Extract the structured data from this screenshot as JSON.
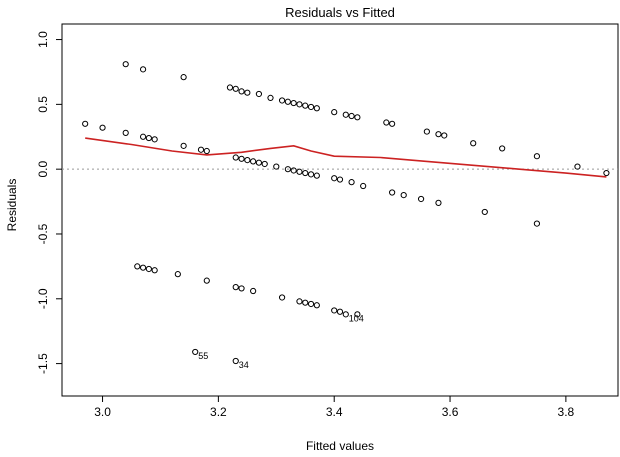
{
  "chart_data": {
    "type": "scatter",
    "title": "Residuals vs Fitted",
    "xlabel": "Fitted values",
    "ylabel": "Residuals",
    "xlim": [
      2.93,
      3.89
    ],
    "ylim": [
      -1.75,
      1.12
    ],
    "x_ticks": [
      3.0,
      3.2,
      3.4,
      3.6,
      3.8
    ],
    "x_tick_labels": [
      "3.0",
      "3.2",
      "3.4",
      "3.6",
      "3.8"
    ],
    "y_ticks": [
      -1.5,
      -1.0,
      -0.5,
      0.0,
      0.5,
      1.0
    ],
    "y_tick_labels": [
      "-1.5",
      "-1.0",
      "-0.5",
      "0.0",
      "0.5",
      "1.0"
    ],
    "grid": false,
    "reference_line": {
      "y": 0,
      "color": "#999999",
      "style": "dotted"
    },
    "smooth_line_color": "#cc2222",
    "point_color": "#000000",
    "points": [
      {
        "x": 2.97,
        "y": 0.35
      },
      {
        "x": 3.0,
        "y": 0.32
      },
      {
        "x": 3.04,
        "y": 0.81
      },
      {
        "x": 3.04,
        "y": 0.28
      },
      {
        "x": 3.07,
        "y": 0.77
      },
      {
        "x": 3.07,
        "y": 0.25
      },
      {
        "x": 3.08,
        "y": 0.24
      },
      {
        "x": 3.09,
        "y": 0.23
      },
      {
        "x": 3.14,
        "y": 0.71
      },
      {
        "x": 3.14,
        "y": 0.18
      },
      {
        "x": 3.17,
        "y": 0.15
      },
      {
        "x": 3.18,
        "y": 0.14
      },
      {
        "x": 3.22,
        "y": 0.63
      },
      {
        "x": 3.23,
        "y": 0.62
      },
      {
        "x": 3.24,
        "y": 0.6
      },
      {
        "x": 3.25,
        "y": 0.59
      },
      {
        "x": 3.27,
        "y": 0.58
      },
      {
        "x": 3.29,
        "y": 0.55
      },
      {
        "x": 3.31,
        "y": 0.53
      },
      {
        "x": 3.32,
        "y": 0.52
      },
      {
        "x": 3.33,
        "y": 0.51
      },
      {
        "x": 3.34,
        "y": 0.5
      },
      {
        "x": 3.35,
        "y": 0.49
      },
      {
        "x": 3.36,
        "y": 0.48
      },
      {
        "x": 3.37,
        "y": 0.47
      },
      {
        "x": 3.4,
        "y": 0.44
      },
      {
        "x": 3.42,
        "y": 0.42
      },
      {
        "x": 3.43,
        "y": 0.41
      },
      {
        "x": 3.44,
        "y": 0.4
      },
      {
        "x": 3.49,
        "y": 0.36
      },
      {
        "x": 3.5,
        "y": 0.35
      },
      {
        "x": 3.56,
        "y": 0.29
      },
      {
        "x": 3.58,
        "y": 0.27
      },
      {
        "x": 3.59,
        "y": 0.26
      },
      {
        "x": 3.64,
        "y": 0.2
      },
      {
        "x": 3.69,
        "y": 0.16
      },
      {
        "x": 3.75,
        "y": 0.1
      },
      {
        "x": 3.82,
        "y": 0.02
      },
      {
        "x": 3.87,
        "y": -0.03
      },
      {
        "x": 3.23,
        "y": 0.09
      },
      {
        "x": 3.24,
        "y": 0.08
      },
      {
        "x": 3.25,
        "y": 0.07
      },
      {
        "x": 3.26,
        "y": 0.06
      },
      {
        "x": 3.27,
        "y": 0.05
      },
      {
        "x": 3.28,
        "y": 0.04
      },
      {
        "x": 3.3,
        "y": 0.02
      },
      {
        "x": 3.32,
        "y": 0.0
      },
      {
        "x": 3.33,
        "y": -0.01
      },
      {
        "x": 3.34,
        "y": -0.02
      },
      {
        "x": 3.35,
        "y": -0.03
      },
      {
        "x": 3.36,
        "y": -0.04
      },
      {
        "x": 3.37,
        "y": -0.05
      },
      {
        "x": 3.4,
        "y": -0.07
      },
      {
        "x": 3.41,
        "y": -0.08
      },
      {
        "x": 3.43,
        "y": -0.1
      },
      {
        "x": 3.45,
        "y": -0.13
      },
      {
        "x": 3.5,
        "y": -0.18
      },
      {
        "x": 3.52,
        "y": -0.2
      },
      {
        "x": 3.55,
        "y": -0.23
      },
      {
        "x": 3.58,
        "y": -0.26
      },
      {
        "x": 3.66,
        "y": -0.33
      },
      {
        "x": 3.75,
        "y": -0.42
      },
      {
        "x": 3.06,
        "y": -0.75
      },
      {
        "x": 3.07,
        "y": -0.76
      },
      {
        "x": 3.08,
        "y": -0.77
      },
      {
        "x": 3.09,
        "y": -0.78
      },
      {
        "x": 3.13,
        "y": -0.81
      },
      {
        "x": 3.18,
        "y": -0.86
      },
      {
        "x": 3.23,
        "y": -0.91
      },
      {
        "x": 3.24,
        "y": -0.92
      },
      {
        "x": 3.26,
        "y": -0.94
      },
      {
        "x": 3.31,
        "y": -0.99
      },
      {
        "x": 3.34,
        "y": -1.02
      },
      {
        "x": 3.35,
        "y": -1.03
      },
      {
        "x": 3.36,
        "y": -1.04
      },
      {
        "x": 3.37,
        "y": -1.05
      },
      {
        "x": 3.4,
        "y": -1.09
      },
      {
        "x": 3.41,
        "y": -1.1
      },
      {
        "x": 3.44,
        "y": -1.12
      },
      {
        "x": 3.42,
        "y": -1.12,
        "label": "104"
      },
      {
        "x": 3.16,
        "y": -1.41,
        "label": "55"
      },
      {
        "x": 3.23,
        "y": -1.48,
        "label": "34"
      }
    ],
    "smooth_line": [
      {
        "x": 2.97,
        "y": 0.24
      },
      {
        "x": 3.05,
        "y": 0.19
      },
      {
        "x": 3.12,
        "y": 0.14
      },
      {
        "x": 3.18,
        "y": 0.11
      },
      {
        "x": 3.24,
        "y": 0.13
      },
      {
        "x": 3.29,
        "y": 0.16
      },
      {
        "x": 3.33,
        "y": 0.18
      },
      {
        "x": 3.36,
        "y": 0.14
      },
      {
        "x": 3.4,
        "y": 0.1
      },
      {
        "x": 3.48,
        "y": 0.09
      },
      {
        "x": 3.56,
        "y": 0.06
      },
      {
        "x": 3.64,
        "y": 0.03
      },
      {
        "x": 3.72,
        "y": 0.0
      },
      {
        "x": 3.8,
        "y": -0.03
      },
      {
        "x": 3.87,
        "y": -0.06
      }
    ]
  }
}
